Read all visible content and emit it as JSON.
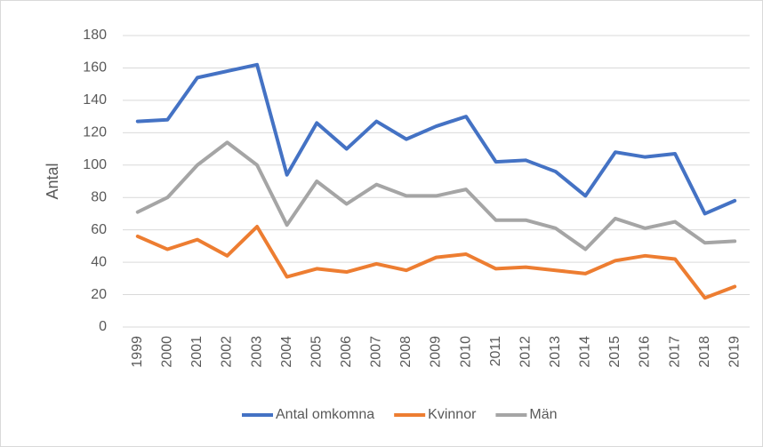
{
  "chart_data": {
    "type": "line",
    "y_label": "Antal",
    "categories": [
      "1999",
      "2000",
      "2001",
      "2002",
      "2003",
      "2004",
      "2005",
      "2006",
      "2007",
      "2008",
      "2009",
      "2010",
      "2011",
      "2012",
      "2013",
      "2014",
      "2015",
      "2016",
      "2017",
      "2018",
      "2019"
    ],
    "series": [
      {
        "name": "Antal omkomna",
        "color": "#4472c4",
        "values": [
          127,
          128,
          154,
          158,
          162,
          94,
          126,
          110,
          127,
          116,
          124,
          130,
          102,
          103,
          96,
          81,
          108,
          105,
          107,
          70,
          78
        ]
      },
      {
        "name": "Kvinnor",
        "color": "#ed7d31",
        "values": [
          56,
          48,
          54,
          44,
          62,
          31,
          36,
          34,
          39,
          35,
          43,
          45,
          36,
          37,
          35,
          33,
          41,
          44,
          42,
          18,
          25
        ]
      },
      {
        "name": "Män",
        "color": "#a5a5a5",
        "values": [
          71,
          80,
          100,
          114,
          100,
          63,
          90,
          76,
          88,
          81,
          81,
          85,
          66,
          66,
          61,
          48,
          67,
          61,
          65,
          52,
          53
        ]
      }
    ],
    "ylim": [
      0,
      180
    ],
    "yticks": [
      0,
      20,
      40,
      60,
      80,
      100,
      120,
      140,
      160,
      180
    ],
    "grid": true,
    "legend": "bottom"
  }
}
